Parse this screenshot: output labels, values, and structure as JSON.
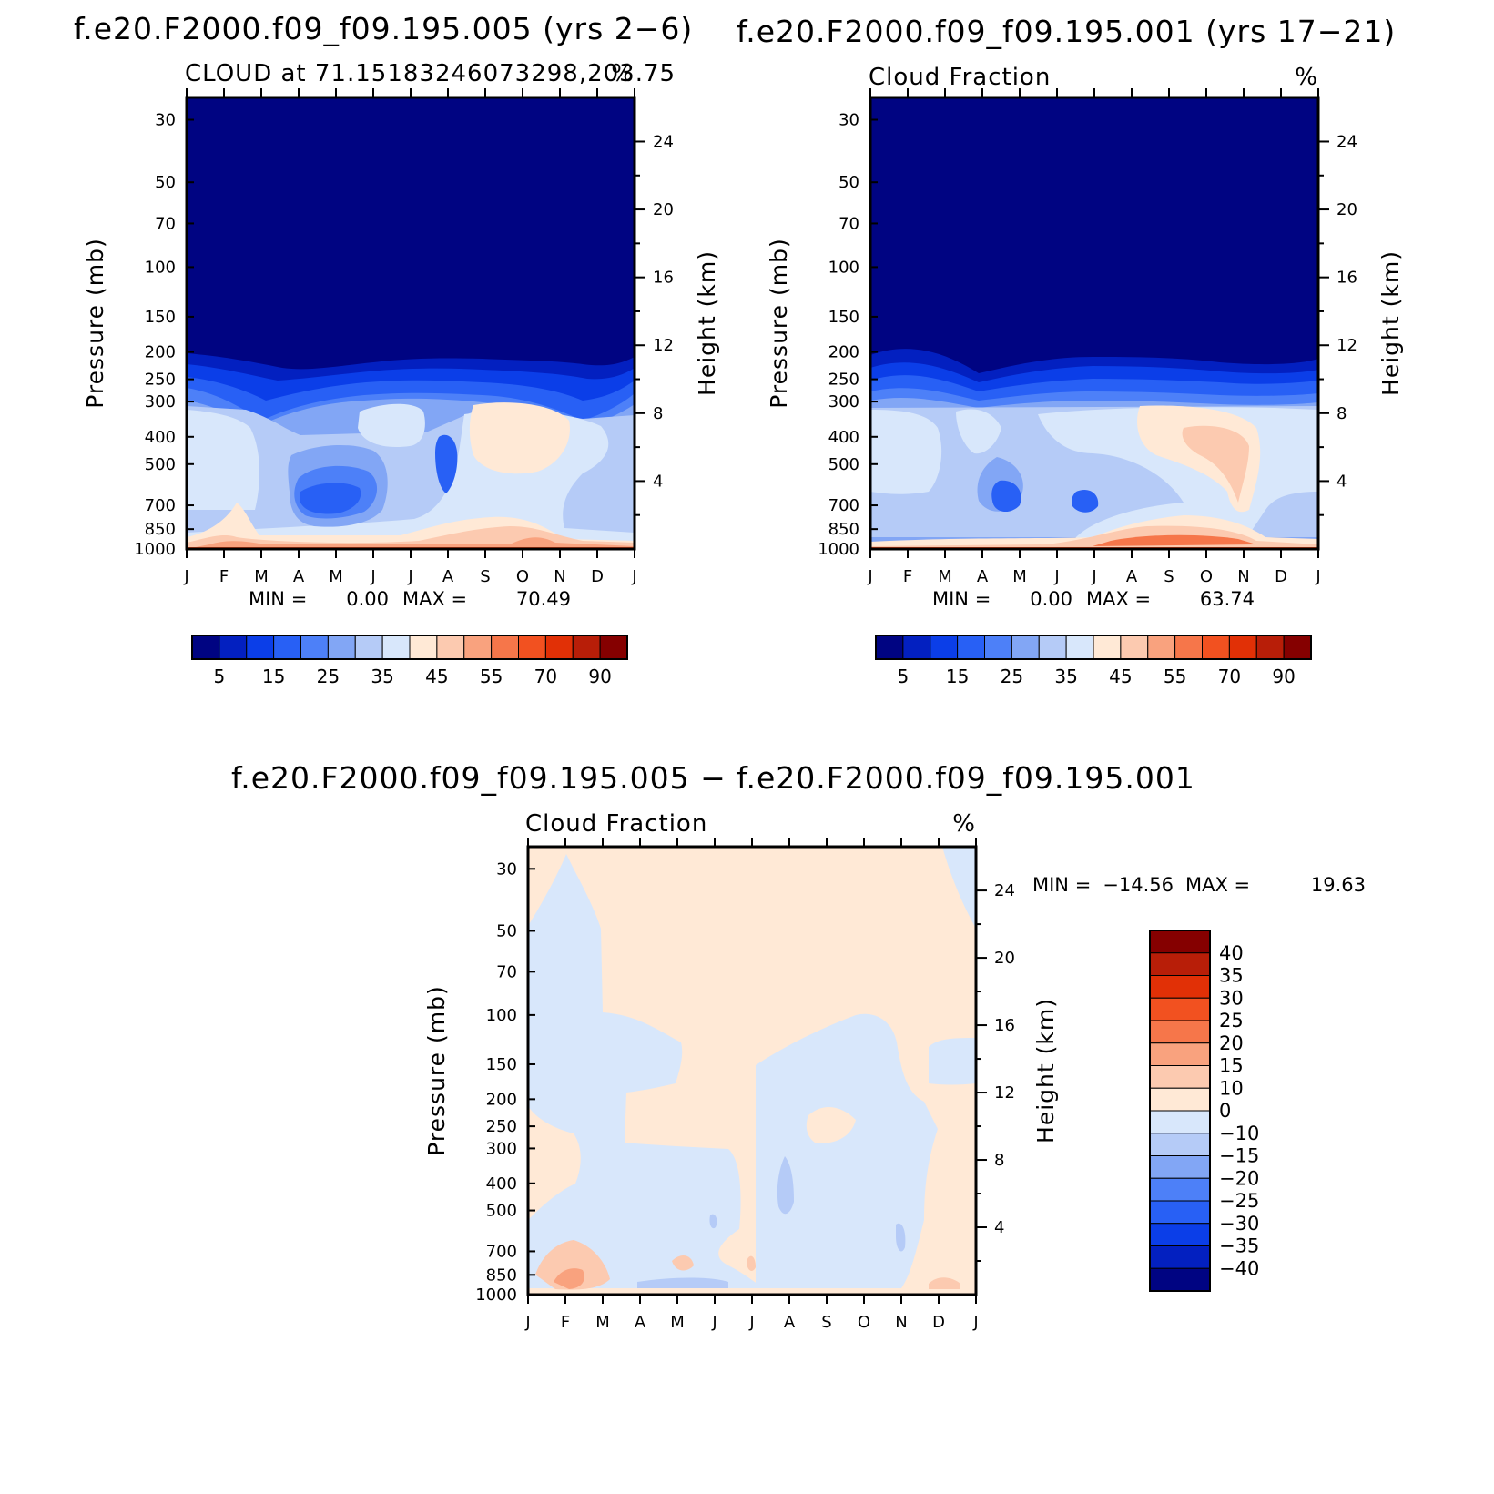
{
  "figure": {
    "panel_a_title": "f.e20.F2000.f09_f09.195.005 (yrs 2−6)",
    "panel_b_title": "f.e20.F2000.f09_f09.195.001 (yrs 17−21)",
    "diff_title": "f.e20.F2000.f09_f09.195.005 − f.e20.F2000.f09_f09.195.001"
  },
  "chart_data": [
    {
      "type": "heatmap",
      "id": "a",
      "subtitle_left": "CLOUD at 71.15183246073298,203.75",
      "subtitle_right": "%",
      "ylabel": "Pressure (mb)",
      "y2label": "Height (km)",
      "x_ticks": [
        "J",
        "F",
        "M",
        "A",
        "M",
        "J",
        "J",
        "A",
        "S",
        "O",
        "N",
        "D",
        "J"
      ],
      "y_ticks": [
        "30",
        "50",
        "70",
        "100",
        "150",
        "200",
        "250",
        "300",
        "400",
        "500",
        "700",
        "850",
        "1000"
      ],
      "y2_ticks": [
        "24",
        "20",
        "16",
        "12",
        "8",
        "4"
      ],
      "min_label": "MIN =",
      "min_value": "0.00",
      "max_label": "MAX =",
      "max_value": "70.49",
      "colorbar_labels": [
        "5",
        "15",
        "25",
        "35",
        "45",
        "55",
        "70",
        "90"
      ],
      "colorbar_colors": [
        "#000482",
        "#0320c0",
        "#0b3ee8",
        "#2860f5",
        "#4d80f8",
        "#82a6f5",
        "#b5cbf7",
        "#d8e7fb",
        "#ffe9d6",
        "#fccab0",
        "#f9a27e",
        "#f6764a",
        "#f25120",
        "#e13006",
        "#b81e08",
        "#850000"
      ],
      "ylim_mb": [
        1000,
        25
      ],
      "xlim_months": [
        0,
        12
      ]
    },
    {
      "type": "heatmap",
      "id": "b",
      "subtitle_left": "Cloud Fraction",
      "subtitle_right": "%",
      "ylabel": "Pressure (mb)",
      "y2label": "Height (km)",
      "x_ticks": [
        "J",
        "F",
        "M",
        "A",
        "M",
        "J",
        "J",
        "A",
        "S",
        "O",
        "N",
        "D",
        "J"
      ],
      "y_ticks": [
        "30",
        "50",
        "70",
        "100",
        "150",
        "200",
        "250",
        "300",
        "400",
        "500",
        "700",
        "850",
        "1000"
      ],
      "y2_ticks": [
        "24",
        "20",
        "16",
        "12",
        "8",
        "4"
      ],
      "min_label": "MIN =",
      "min_value": "0.00",
      "max_label": "MAX =",
      "max_value": "63.74",
      "colorbar_labels": [
        "5",
        "15",
        "25",
        "35",
        "45",
        "55",
        "70",
        "90"
      ],
      "colorbar_colors": [
        "#000482",
        "#0320c0",
        "#0b3ee8",
        "#2860f5",
        "#4d80f8",
        "#82a6f5",
        "#b5cbf7",
        "#d8e7fb",
        "#ffe9d6",
        "#fccab0",
        "#f9a27e",
        "#f6764a",
        "#f25120",
        "#e13006",
        "#b81e08",
        "#850000"
      ],
      "ylim_mb": [
        1000,
        25
      ],
      "xlim_months": [
        0,
        12
      ]
    },
    {
      "type": "heatmap",
      "id": "diff",
      "subtitle_left": "Cloud Fraction",
      "subtitle_right": "%",
      "ylabel": "Pressure (mb)",
      "y2label": "Height (km)",
      "x_ticks": [
        "J",
        "F",
        "M",
        "A",
        "M",
        "J",
        "J",
        "A",
        "S",
        "O",
        "N",
        "D",
        "J"
      ],
      "y_ticks": [
        "30",
        "50",
        "70",
        "100",
        "150",
        "200",
        "250",
        "300",
        "400",
        "500",
        "700",
        "850",
        "1000"
      ],
      "y2_ticks": [
        "24",
        "20",
        "16",
        "12",
        "8",
        "4"
      ],
      "min_label": "MIN =",
      "min_value": "−14.56",
      "max_label": "MAX =",
      "max_value": "19.63",
      "colorbar_labels": [
        "40",
        "35",
        "30",
        "25",
        "20",
        "15",
        "10",
        "0",
        "−10",
        "−15",
        "−20",
        "−25",
        "−30",
        "−35",
        "−40"
      ],
      "colorbar_colors": [
        "#850000",
        "#b81e08",
        "#e13006",
        "#f25120",
        "#f6764a",
        "#f9a27e",
        "#fccab0",
        "#ffe9d6",
        "#d8e7fb",
        "#b5cbf7",
        "#82a6f5",
        "#4d80f8",
        "#2860f5",
        "#0b3ee8",
        "#0320c0",
        "#000482"
      ],
      "ylim_mb": [
        1000,
        25
      ],
      "xlim_months": [
        0,
        12
      ]
    }
  ]
}
